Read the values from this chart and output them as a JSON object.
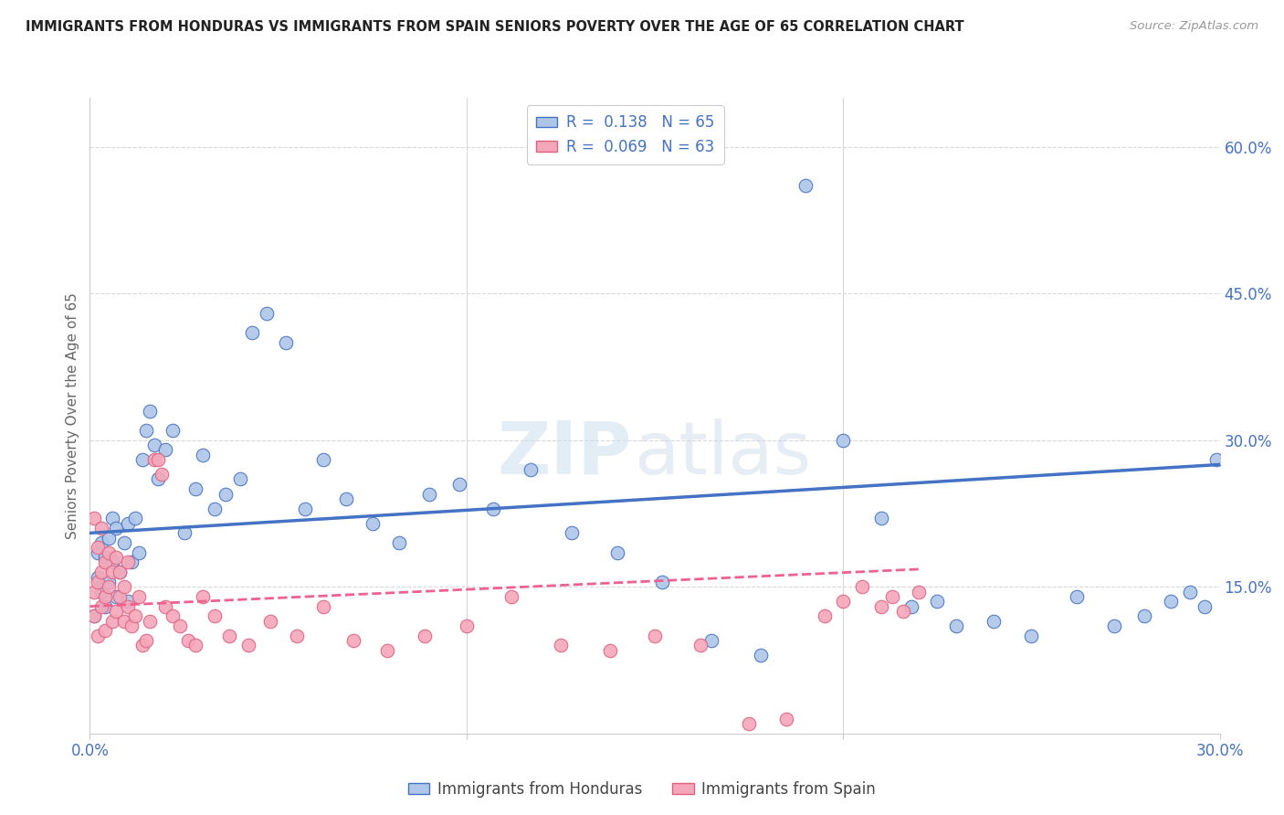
{
  "title": "IMMIGRANTS FROM HONDURAS VS IMMIGRANTS FROM SPAIN SENIORS POVERTY OVER THE AGE OF 65 CORRELATION CHART",
  "source": "Source: ZipAtlas.com",
  "ylabel": "Seniors Poverty Over the Age of 65",
  "legend_label1": "Immigrants from Honduras",
  "legend_label2": "Immigrants from Spain",
  "color_honduras": "#aec6e8",
  "color_spain": "#f4a7b9",
  "line_color_honduras": "#4472c4",
  "line_color_spain": "#f06090",
  "x_lim": [
    0.0,
    0.3
  ],
  "y_lim": [
    0.0,
    0.65
  ],
  "blue_line_x": [
    0.0,
    0.3
  ],
  "blue_line_y": [
    0.205,
    0.275
  ],
  "pink_line_x": [
    0.0,
    0.22
  ],
  "pink_line_y": [
    0.13,
    0.168
  ],
  "legend_R1": "R =  0.138",
  "legend_N1": "N = 65",
  "legend_R2": "R =  0.069",
  "legend_N2": "N = 63",
  "hon_x": [
    0.001,
    0.002,
    0.002,
    0.003,
    0.003,
    0.004,
    0.004,
    0.005,
    0.005,
    0.006,
    0.006,
    0.007,
    0.007,
    0.008,
    0.009,
    0.01,
    0.01,
    0.011,
    0.012,
    0.013,
    0.014,
    0.015,
    0.016,
    0.017,
    0.018,
    0.02,
    0.022,
    0.025,
    0.028,
    0.03,
    0.033,
    0.036,
    0.04,
    0.043,
    0.047,
    0.052,
    0.057,
    0.062,
    0.068,
    0.075,
    0.082,
    0.09,
    0.098,
    0.107,
    0.117,
    0.128,
    0.14,
    0.152,
    0.165,
    0.178,
    0.19,
    0.2,
    0.21,
    0.218,
    0.225,
    0.23,
    0.24,
    0.25,
    0.262,
    0.272,
    0.28,
    0.287,
    0.292,
    0.296,
    0.299
  ],
  "hon_y": [
    0.12,
    0.16,
    0.185,
    0.145,
    0.195,
    0.13,
    0.18,
    0.2,
    0.155,
    0.175,
    0.22,
    0.14,
    0.21,
    0.165,
    0.195,
    0.135,
    0.215,
    0.175,
    0.22,
    0.185,
    0.28,
    0.31,
    0.33,
    0.295,
    0.26,
    0.29,
    0.31,
    0.205,
    0.25,
    0.285,
    0.23,
    0.245,
    0.26,
    0.41,
    0.43,
    0.4,
    0.23,
    0.28,
    0.24,
    0.215,
    0.195,
    0.245,
    0.255,
    0.23,
    0.27,
    0.205,
    0.185,
    0.155,
    0.095,
    0.08,
    0.56,
    0.3,
    0.22,
    0.13,
    0.135,
    0.11,
    0.115,
    0.1,
    0.14,
    0.11,
    0.12,
    0.135,
    0.145,
    0.13,
    0.28
  ],
  "spa_x": [
    0.001,
    0.001,
    0.001,
    0.002,
    0.002,
    0.002,
    0.003,
    0.003,
    0.003,
    0.004,
    0.004,
    0.004,
    0.005,
    0.005,
    0.006,
    0.006,
    0.007,
    0.007,
    0.008,
    0.008,
    0.009,
    0.009,
    0.01,
    0.01,
    0.011,
    0.012,
    0.013,
    0.014,
    0.015,
    0.016,
    0.017,
    0.018,
    0.019,
    0.02,
    0.022,
    0.024,
    0.026,
    0.028,
    0.03,
    0.033,
    0.037,
    0.042,
    0.048,
    0.055,
    0.062,
    0.07,
    0.079,
    0.089,
    0.1,
    0.112,
    0.125,
    0.138,
    0.15,
    0.162,
    0.175,
    0.185,
    0.195,
    0.2,
    0.205,
    0.21,
    0.213,
    0.216,
    0.22
  ],
  "spa_y": [
    0.12,
    0.145,
    0.22,
    0.1,
    0.155,
    0.19,
    0.13,
    0.165,
    0.21,
    0.14,
    0.175,
    0.105,
    0.15,
    0.185,
    0.115,
    0.165,
    0.125,
    0.18,
    0.14,
    0.165,
    0.115,
    0.15,
    0.13,
    0.175,
    0.11,
    0.12,
    0.14,
    0.09,
    0.095,
    0.115,
    0.28,
    0.28,
    0.265,
    0.13,
    0.12,
    0.11,
    0.095,
    0.09,
    0.14,
    0.12,
    0.1,
    0.09,
    0.115,
    0.1,
    0.13,
    0.095,
    0.085,
    0.1,
    0.11,
    0.14,
    0.09,
    0.085,
    0.1,
    0.09,
    0.01,
    0.015,
    0.12,
    0.135,
    0.15,
    0.13,
    0.14,
    0.125,
    0.145
  ]
}
